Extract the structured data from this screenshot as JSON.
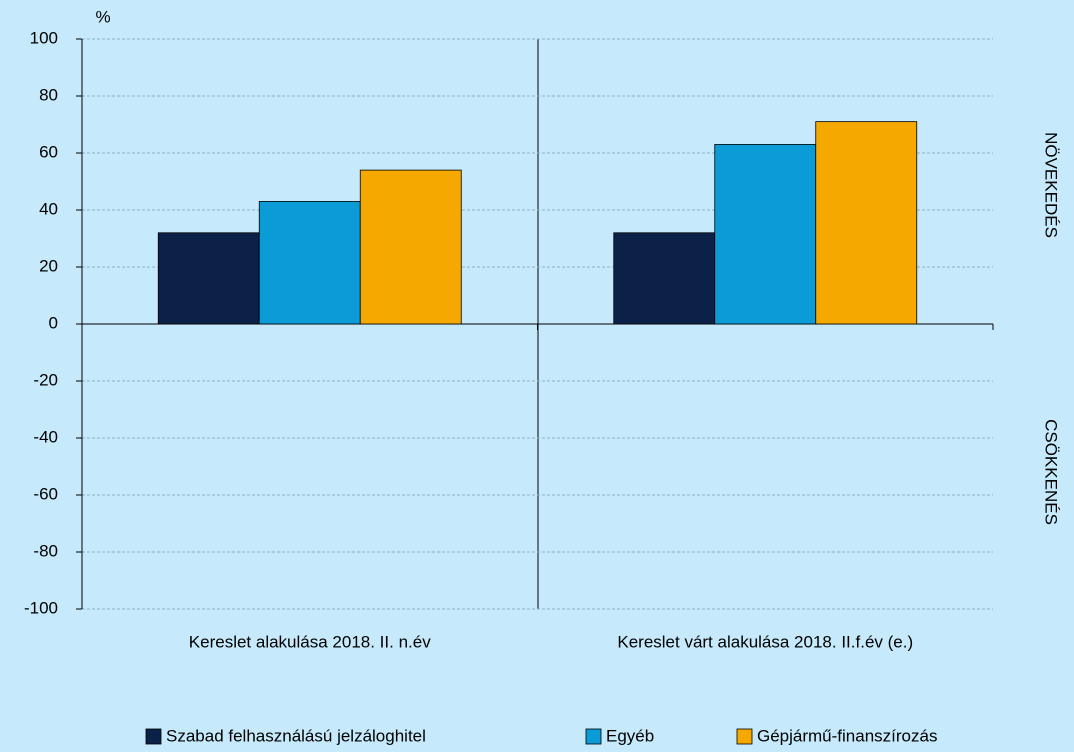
{
  "chart_data": {
    "type": "bar",
    "unit_label": "%",
    "annotations": [
      "NÖVEKEDÉS",
      "CSÖKKENÉS"
    ],
    "categories": [
      "Kereslet alakulása 2018. II. n.év",
      "Kereslet várt alakulása 2018. II.f.év (e.)"
    ],
    "series": [
      {
        "name": "Szabad felhasználású jelzáloghitel",
        "color": "#0c2148",
        "values": [
          32,
          32
        ]
      },
      {
        "name": "Egyéb",
        "color": "#0b9bd7",
        "values": [
          43,
          63
        ]
      },
      {
        "name": "Gépjármű-finanszírozás",
        "color": "#f4a800",
        "values": [
          54,
          71
        ]
      }
    ],
    "ylim": [
      -100,
      100
    ],
    "yticks": [
      -100,
      -80,
      -60,
      -40,
      -20,
      0,
      20,
      40,
      60,
      80,
      100
    ],
    "grid": true
  }
}
